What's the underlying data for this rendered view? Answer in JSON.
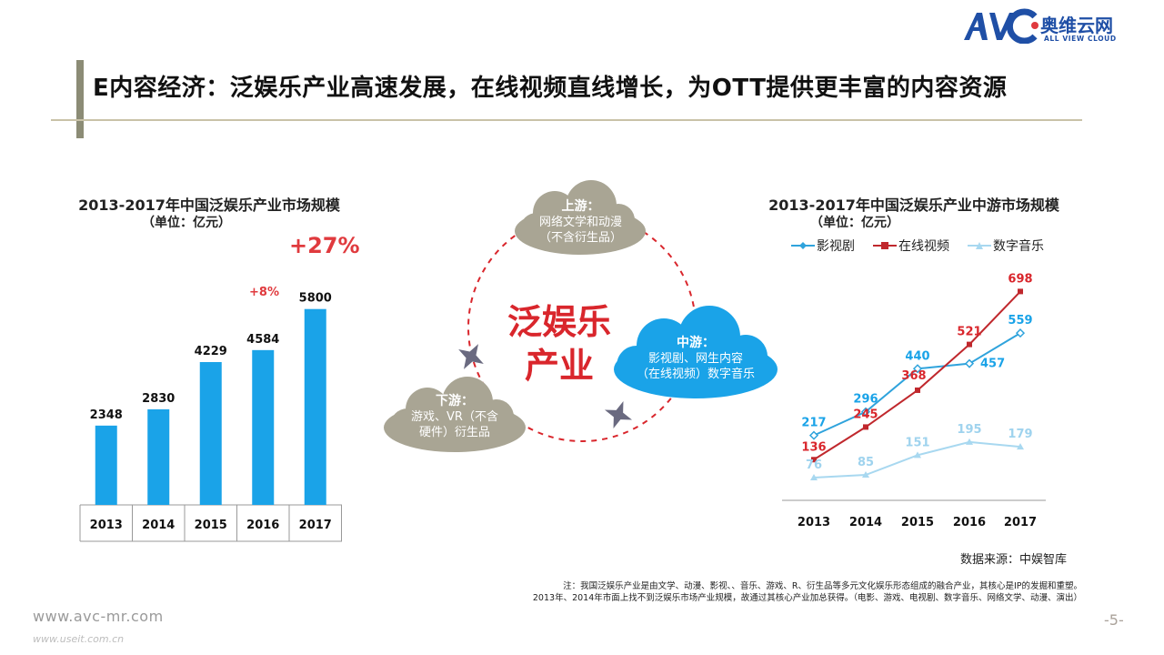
{
  "header": {
    "title": "E内容经济：泛娱乐产业高速发展，在线视频直线增长，为OTT提供更丰富的内容资源",
    "logo_cn": "奥维云网",
    "logo_en": "ALL VIEW CLOUD",
    "logo_mark": "AVC"
  },
  "left_chart": {
    "title": "2013-2017年中国泛娱乐产业市场规模",
    "subtitle": "（单位：亿元）",
    "growth_big": "+27%",
    "growth_small": "+8%"
  },
  "middle": {
    "center_label_line1": "泛娱乐",
    "center_label_line2": "产业",
    "upstream_head": "上游：",
    "upstream_line1": "网络文学和动漫",
    "upstream_line2": "（不含衍生品）",
    "midstream_head": "中游：",
    "midstream_line1": "影视剧、网生内容",
    "midstream_line2": "（在线视频）数字音乐",
    "downstream_head": "下游：",
    "downstream_line1": "游戏、VR（不含",
    "downstream_line2": "硬件）衍生品"
  },
  "right_chart": {
    "title": "2013-2017年中国泛娱乐产业中游市场规模",
    "subtitle": "（单位：亿元）",
    "legend": [
      "影视剧",
      "在线视频",
      "数字音乐"
    ]
  },
  "chart_data": [
    {
      "type": "bar",
      "title": "2013-2017年中国泛娱乐产业市场规模",
      "subtitle": "（单位：亿元）",
      "categories": [
        "2013",
        "2014",
        "2015",
        "2016",
        "2017"
      ],
      "values": [
        2348,
        2830,
        4229,
        4584,
        5800
      ],
      "ylim": [
        0,
        6600
      ],
      "color": "#1aa3e8",
      "annotations": [
        "+8%",
        "+27%"
      ]
    },
    {
      "type": "line",
      "title": "2013-2017年中国泛娱乐产业中游市场规模",
      "subtitle": "（单位：亿元）",
      "categories": [
        "2013",
        "2014",
        "2015",
        "2016",
        "2017"
      ],
      "ylim": [
        0,
        760
      ],
      "legend_position": "top",
      "series": [
        {
          "name": "影视剧",
          "values": [
            217,
            296,
            440,
            457,
            559
          ],
          "color": "#2fa3dc",
          "marker": "diamond"
        },
        {
          "name": "在线视频",
          "values": [
            136,
            245,
            368,
            521,
            698
          ],
          "color": "#c0282d",
          "marker": "square"
        },
        {
          "name": "数字音乐",
          "values": [
            76,
            85,
            151,
            195,
            179
          ],
          "color": "#a8d8f0",
          "marker": "triangle"
        }
      ]
    }
  ],
  "footer": {
    "source": "数据来源：中娱智库",
    "note1": "注：我国泛娱乐产业是由文学、动漫、影视、、音乐、游戏、R、衍生品等多元文化娱乐形态组成的融合产业，其核心是IP的发掘和重塑。",
    "note2": "2013年、2014年市面上找不到泛娱乐市场产业规模，故通过其核心产业加总获得。（电影、游戏、电视剧、数字音乐、网络文学、动漫、演出）",
    "website": "www.avc-mr.com",
    "website2": "www.useit.com.cn",
    "page": "-5-"
  }
}
